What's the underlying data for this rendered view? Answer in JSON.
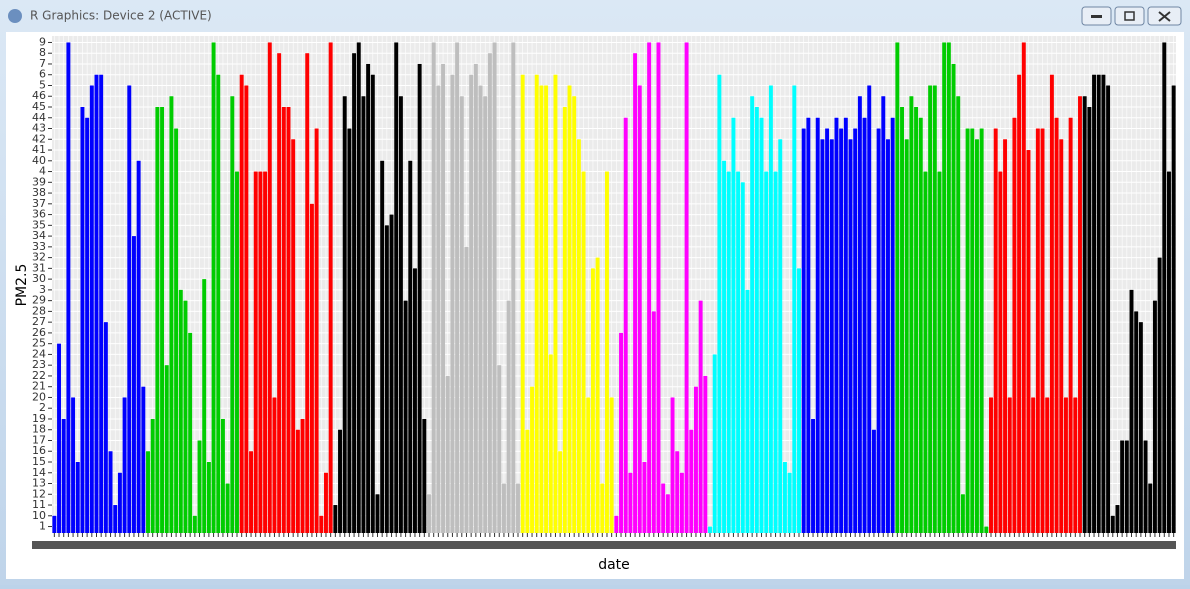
{
  "window_title": "R Graphics: Device 2 (ACTIVE)",
  "chart_data": {
    "type": "bar",
    "xlabel": "date",
    "ylabel": "PM2.5",
    "ylevels": [
      1,
      10,
      11,
      12,
      13,
      14,
      15,
      16,
      17,
      18,
      19,
      2,
      20,
      21,
      22,
      23,
      24,
      25,
      26,
      27,
      28,
      29,
      3,
      30,
      31,
      32,
      33,
      34,
      35,
      36,
      37,
      38,
      39,
      4,
      40,
      41,
      42,
      43,
      44,
      45,
      46,
      5,
      6,
      7,
      8,
      9
    ],
    "grid": true,
    "series": [
      {
        "color": "#0000ff",
        "values": [
          10,
          25,
          19,
          9,
          20,
          15,
          45,
          44,
          5,
          6,
          6,
          27,
          16,
          11,
          14,
          20,
          5,
          34,
          40,
          21
        ]
      },
      {
        "color": "#00cc00",
        "values": [
          16,
          19,
          45,
          45,
          23,
          46,
          43,
          3,
          29,
          26,
          10,
          17,
          30,
          15,
          9,
          6,
          19,
          13,
          46,
          4
        ]
      },
      {
        "color": "#ff0000",
        "values": [
          6,
          5,
          16,
          4,
          4,
          4,
          9,
          20,
          8,
          45,
          45,
          42,
          18,
          19,
          8,
          37,
          43,
          10,
          14,
          9
        ]
      },
      {
        "color": "#000000",
        "values": [
          11,
          18,
          46,
          43,
          8,
          9,
          46,
          7,
          6,
          12,
          40,
          35,
          36,
          9,
          46,
          29,
          40,
          31,
          7,
          19
        ]
      },
      {
        "color": "#bebebe",
        "values": [
          12,
          9,
          5,
          7,
          22,
          6,
          9,
          46,
          33,
          6,
          7,
          5,
          46,
          8,
          9,
          23,
          13,
          29,
          9,
          13
        ]
      },
      {
        "color": "#ffff00",
        "values": [
          6,
          18,
          21,
          6,
          5,
          5,
          24,
          6,
          16,
          45,
          5,
          46,
          42,
          4,
          20,
          31,
          32,
          13,
          4,
          20
        ]
      },
      {
        "color": "#ff00ff",
        "values": [
          10,
          26,
          44,
          14,
          8,
          5,
          15,
          9,
          28,
          9,
          13,
          12,
          20,
          16,
          14,
          9,
          18,
          21,
          29,
          22
        ]
      },
      {
        "color": "#00ffff",
        "values": [
          1,
          24,
          6,
          40,
          4,
          44,
          4,
          39,
          3,
          46,
          45,
          44,
          4,
          5,
          4,
          42,
          15,
          14,
          5,
          31
        ]
      },
      {
        "color": "#0000ff",
        "values": [
          43,
          44,
          19,
          44,
          42,
          43,
          42,
          44,
          43,
          44,
          42,
          43,
          46,
          44,
          5,
          18,
          43,
          46,
          42,
          44
        ]
      },
      {
        "color": "#00cc00",
        "values": [
          9,
          45,
          42,
          46,
          45,
          44,
          4,
          5,
          5,
          4,
          9,
          9,
          7,
          46,
          12,
          43,
          43,
          42,
          43,
          1
        ]
      },
      {
        "color": "#ff0000",
        "values": [
          20,
          43,
          4,
          42,
          20,
          44,
          6,
          9,
          41,
          20,
          43,
          43,
          20,
          6,
          44,
          42,
          20,
          44,
          20,
          46
        ]
      },
      {
        "color": "#000000",
        "values": [
          46,
          45,
          6,
          6,
          6,
          5,
          10,
          11,
          17,
          17,
          3,
          28,
          27,
          17,
          13,
          29,
          32,
          9,
          4,
          5
        ]
      }
    ]
  }
}
